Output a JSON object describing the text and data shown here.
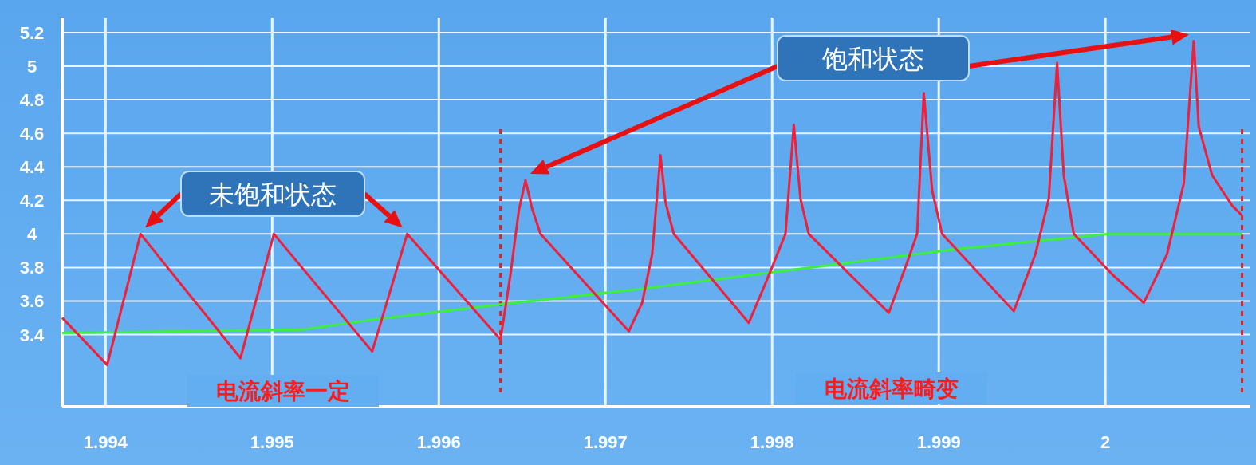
{
  "chart_data": {
    "type": "line",
    "x": [
      1.99374,
      1.99401,
      1.99421,
      1.99481,
      1.99501,
      1.9956,
      1.99581,
      1.99637,
      1.99643,
      1.99648,
      1.99652,
      1.99656,
      1.99661,
      1.99714,
      1.99722,
      1.99728,
      1.99733,
      1.99736,
      1.99741,
      1.99786,
      1.99797,
      1.99808,
      1.99813,
      1.99817,
      1.99822,
      1.9987,
      1.99881,
      1.99887,
      1.99891,
      1.99896,
      1.99902,
      1.99945,
      1.99958,
      1.99966,
      1.99971,
      1.99975,
      1.99981,
      2.00004,
      2.00023,
      2.00037,
      2.00047,
      2.00053,
      2.00056,
      2.00064,
      2.00076,
      2.00082
    ],
    "series": [
      {
        "color": "#f0203a",
        "values": [
          3.5,
          3.22,
          4.0,
          3.26,
          4.0,
          3.3,
          4.0,
          3.37,
          3.76,
          4.14,
          4.32,
          4.15,
          4.0,
          3.42,
          3.59,
          3.88,
          4.47,
          4.19,
          4.0,
          3.47,
          3.73,
          4.0,
          4.65,
          4.21,
          4.0,
          3.53,
          3.83,
          4.0,
          4.84,
          4.26,
          4.0,
          3.54,
          3.88,
          4.21,
          5.02,
          4.35,
          4.0,
          3.76,
          3.59,
          3.88,
          4.3,
          5.15,
          4.64,
          4.35,
          4.17,
          4.11
        ]
      },
      {
        "color": "#3cf03c",
        "x": [
          1.99374,
          1.99518,
          1.99561,
          1.99637,
          1.99719,
          1.99815,
          1.99911,
          2.00002,
          2.00082
        ],
        "values": [
          3.41,
          3.43,
          3.49,
          3.58,
          3.67,
          3.79,
          3.91,
          4.0,
          4.0
        ]
      }
    ],
    "xlim": [
      1.99374,
      2.00087
    ],
    "ylim": [
      2.97,
      5.29
    ],
    "xticks": [
      1.994,
      1.995,
      1.996,
      1.997,
      1.998,
      1.999,
      {
        "value": 2.0,
        "label": "2"
      }
    ],
    "yticks": [
      3.4,
      3.6,
      3.8,
      {
        "value": 4.0,
        "label": "4"
      },
      4.2,
      4.4,
      4.6,
      4.8,
      {
        "value": 5.0,
        "label": "5"
      },
      5.2
    ],
    "grid": true,
    "ref_lines": [
      {
        "axis": "x",
        "value": 1.99637,
        "color": "#e8201a",
        "line_style": "dashed"
      },
      {
        "axis": "x",
        "value": 2.00082,
        "color": "#e8201a",
        "line_style": "dashed"
      }
    ],
    "annotations": [
      "未饱和状态",
      "饱和状态",
      "电流斜率一定",
      "电流斜率畸变"
    ]
  }
}
